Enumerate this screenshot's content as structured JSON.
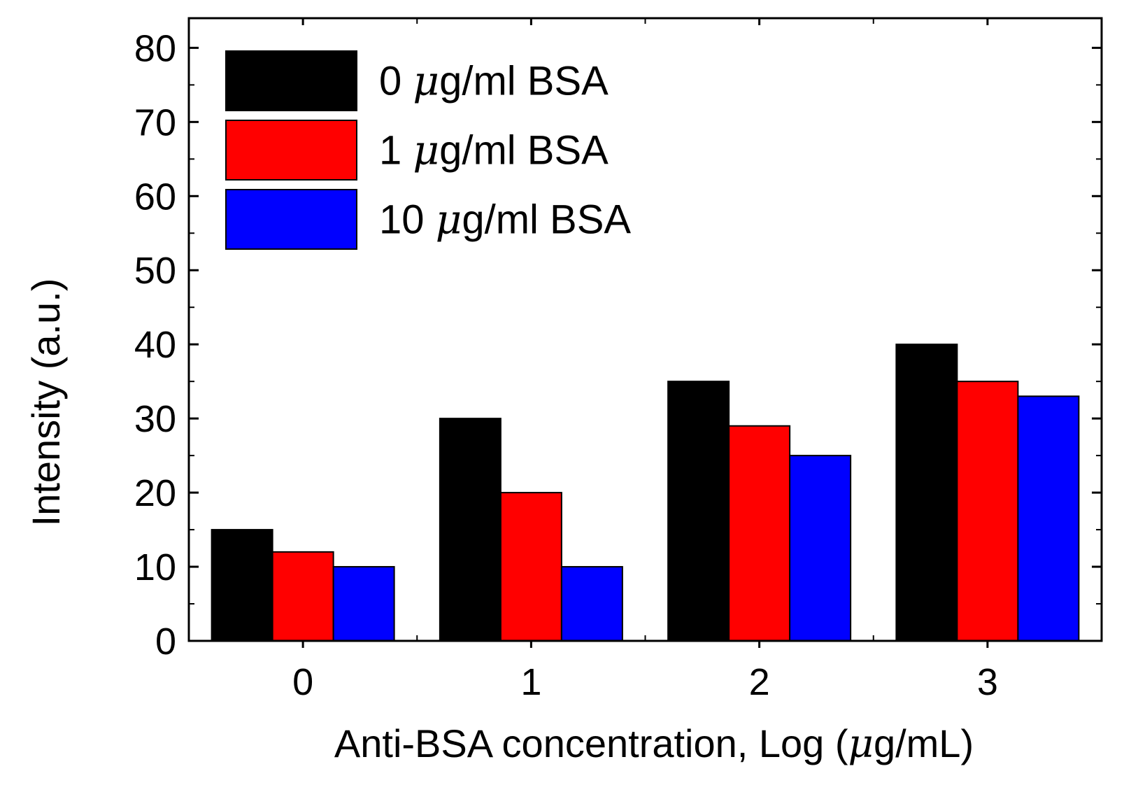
{
  "chart_data": {
    "type": "bar",
    "categories": [
      "0",
      "1",
      "2",
      "3"
    ],
    "series": [
      {
        "name": "0 μg/ml BSA",
        "label_num": "0 ",
        "label_mu": "μ",
        "label_rest": "g/ml BSA",
        "color": "#000000",
        "values": [
          15,
          30,
          35,
          40
        ]
      },
      {
        "name": "1 μg/ml BSA",
        "label_num": "1 ",
        "label_mu": "μ",
        "label_rest": "g/ml BSA",
        "color": "#ff0000",
        "values": [
          12,
          20,
          29,
          35
        ]
      },
      {
        "name": "10 μg/ml BSA",
        "label_num": "10 ",
        "label_mu": "μ",
        "label_rest": "g/ml BSA",
        "color": "#0000ff",
        "values": [
          10,
          10,
          25,
          33
        ]
      }
    ],
    "xlabel": "Anti-BSA concentration, Log (μg/mL)",
    "xlabel_main": "Anti-BSA concentration, Log (",
    "xlabel_mu": "μ",
    "xlabel_tail": "g/mL)",
    "ylabel": "Intensity (a.u.)",
    "ylim": [
      0,
      84
    ],
    "yticks": [
      "0",
      "10",
      "20",
      "30",
      "40",
      "50",
      "60",
      "70",
      "80"
    ],
    "legend_position": "top-left",
    "grid": false
  }
}
